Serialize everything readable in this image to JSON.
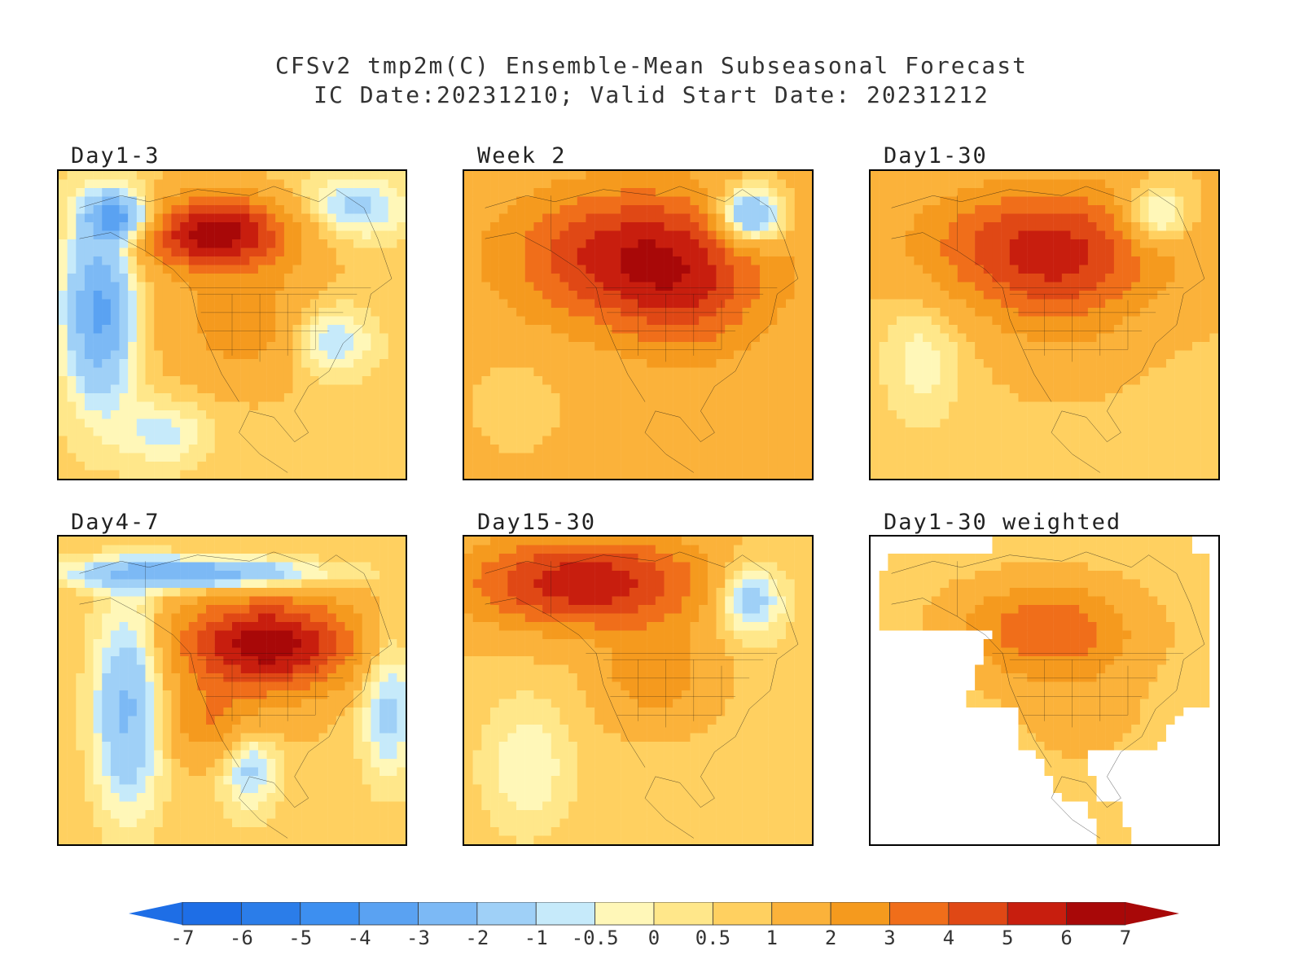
{
  "title": {
    "line1": "CFSv2 tmp2m(C) Ensemble-Mean Subseasonal Forecast",
    "line2": "IC Date:20231210; Valid Start Date: 20231212"
  },
  "panels": [
    {
      "label": "Day1-3",
      "pattern": "day1-3"
    },
    {
      "label": "Week 2",
      "pattern": "week2"
    },
    {
      "label": "Day1-30",
      "pattern": "day1-30"
    },
    {
      "label": "Day4-7",
      "pattern": "day4-7"
    },
    {
      "label": "Day15-30",
      "pattern": "day15-30"
    },
    {
      "label": "Day1-30 weighted",
      "pattern": "weighted"
    }
  ],
  "colorbar": {
    "labels": [
      "-7",
      "-6",
      "-5",
      "-4",
      "-3",
      "-2",
      "-1",
      "-0.5",
      "0",
      "0.5",
      "1",
      "2",
      "3",
      "4",
      "5",
      "6",
      "7"
    ],
    "colors": [
      "#1e6ee6",
      "#2b7de9",
      "#3d8ff0",
      "#5aa2f2",
      "#7cb9f5",
      "#9fd0f7",
      "#c6eafa",
      "#fff7b8",
      "#ffe78a",
      "#ffd060",
      "#fbb23a",
      "#f59a1e",
      "#f06e1a",
      "#e04815",
      "#c81e0e",
      "#a80808"
    ],
    "left_arrow_color": "#1e6ee6",
    "right_arrow_color": "#a80808"
  }
}
